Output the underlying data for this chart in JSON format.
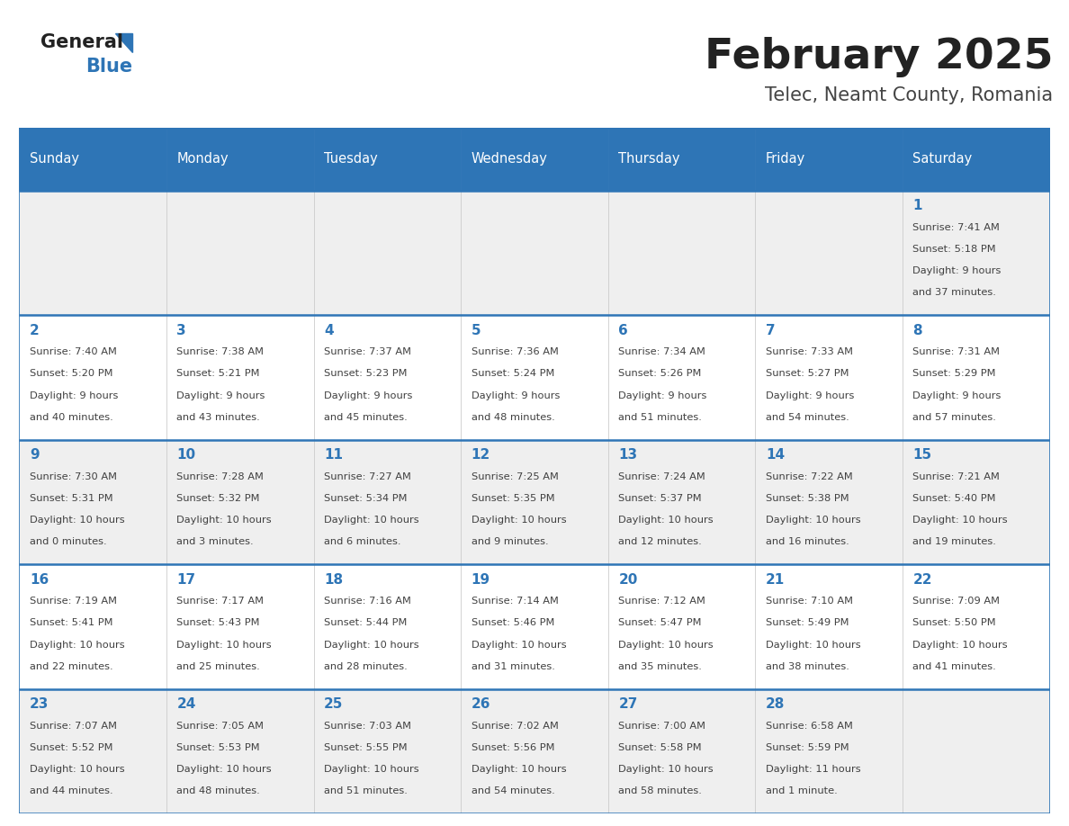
{
  "title": "February 2025",
  "subtitle": "Telec, Neamt County, Romania",
  "header_bg": "#2E75B6",
  "header_text_color": "#FFFFFF",
  "cell_bg_light": "#EFEFEF",
  "cell_bg_white": "#FFFFFF",
  "day_number_color": "#2E75B6",
  "info_text_color": "#404040",
  "border_color": "#2E75B6",
  "grid_line_color": "#CCCCCC",
  "days_of_week": [
    "Sunday",
    "Monday",
    "Tuesday",
    "Wednesday",
    "Thursday",
    "Friday",
    "Saturday"
  ],
  "weeks": [
    [
      {
        "day": "",
        "info": ""
      },
      {
        "day": "",
        "info": ""
      },
      {
        "day": "",
        "info": ""
      },
      {
        "day": "",
        "info": ""
      },
      {
        "day": "",
        "info": ""
      },
      {
        "day": "",
        "info": ""
      },
      {
        "day": "1",
        "info": "Sunrise: 7:41 AM\nSunset: 5:18 PM\nDaylight: 9 hours\nand 37 minutes."
      }
    ],
    [
      {
        "day": "2",
        "info": "Sunrise: 7:40 AM\nSunset: 5:20 PM\nDaylight: 9 hours\nand 40 minutes."
      },
      {
        "day": "3",
        "info": "Sunrise: 7:38 AM\nSunset: 5:21 PM\nDaylight: 9 hours\nand 43 minutes."
      },
      {
        "day": "4",
        "info": "Sunrise: 7:37 AM\nSunset: 5:23 PM\nDaylight: 9 hours\nand 45 minutes."
      },
      {
        "day": "5",
        "info": "Sunrise: 7:36 AM\nSunset: 5:24 PM\nDaylight: 9 hours\nand 48 minutes."
      },
      {
        "day": "6",
        "info": "Sunrise: 7:34 AM\nSunset: 5:26 PM\nDaylight: 9 hours\nand 51 minutes."
      },
      {
        "day": "7",
        "info": "Sunrise: 7:33 AM\nSunset: 5:27 PM\nDaylight: 9 hours\nand 54 minutes."
      },
      {
        "day": "8",
        "info": "Sunrise: 7:31 AM\nSunset: 5:29 PM\nDaylight: 9 hours\nand 57 minutes."
      }
    ],
    [
      {
        "day": "9",
        "info": "Sunrise: 7:30 AM\nSunset: 5:31 PM\nDaylight: 10 hours\nand 0 minutes."
      },
      {
        "day": "10",
        "info": "Sunrise: 7:28 AM\nSunset: 5:32 PM\nDaylight: 10 hours\nand 3 minutes."
      },
      {
        "day": "11",
        "info": "Sunrise: 7:27 AM\nSunset: 5:34 PM\nDaylight: 10 hours\nand 6 minutes."
      },
      {
        "day": "12",
        "info": "Sunrise: 7:25 AM\nSunset: 5:35 PM\nDaylight: 10 hours\nand 9 minutes."
      },
      {
        "day": "13",
        "info": "Sunrise: 7:24 AM\nSunset: 5:37 PM\nDaylight: 10 hours\nand 12 minutes."
      },
      {
        "day": "14",
        "info": "Sunrise: 7:22 AM\nSunset: 5:38 PM\nDaylight: 10 hours\nand 16 minutes."
      },
      {
        "day": "15",
        "info": "Sunrise: 7:21 AM\nSunset: 5:40 PM\nDaylight: 10 hours\nand 19 minutes."
      }
    ],
    [
      {
        "day": "16",
        "info": "Sunrise: 7:19 AM\nSunset: 5:41 PM\nDaylight: 10 hours\nand 22 minutes."
      },
      {
        "day": "17",
        "info": "Sunrise: 7:17 AM\nSunset: 5:43 PM\nDaylight: 10 hours\nand 25 minutes."
      },
      {
        "day": "18",
        "info": "Sunrise: 7:16 AM\nSunset: 5:44 PM\nDaylight: 10 hours\nand 28 minutes."
      },
      {
        "day": "19",
        "info": "Sunrise: 7:14 AM\nSunset: 5:46 PM\nDaylight: 10 hours\nand 31 minutes."
      },
      {
        "day": "20",
        "info": "Sunrise: 7:12 AM\nSunset: 5:47 PM\nDaylight: 10 hours\nand 35 minutes."
      },
      {
        "day": "21",
        "info": "Sunrise: 7:10 AM\nSunset: 5:49 PM\nDaylight: 10 hours\nand 38 minutes."
      },
      {
        "day": "22",
        "info": "Sunrise: 7:09 AM\nSunset: 5:50 PM\nDaylight: 10 hours\nand 41 minutes."
      }
    ],
    [
      {
        "day": "23",
        "info": "Sunrise: 7:07 AM\nSunset: 5:52 PM\nDaylight: 10 hours\nand 44 minutes."
      },
      {
        "day": "24",
        "info": "Sunrise: 7:05 AM\nSunset: 5:53 PM\nDaylight: 10 hours\nand 48 minutes."
      },
      {
        "day": "25",
        "info": "Sunrise: 7:03 AM\nSunset: 5:55 PM\nDaylight: 10 hours\nand 51 minutes."
      },
      {
        "day": "26",
        "info": "Sunrise: 7:02 AM\nSunset: 5:56 PM\nDaylight: 10 hours\nand 54 minutes."
      },
      {
        "day": "27",
        "info": "Sunrise: 7:00 AM\nSunset: 5:58 PM\nDaylight: 10 hours\nand 58 minutes."
      },
      {
        "day": "28",
        "info": "Sunrise: 6:58 AM\nSunset: 5:59 PM\nDaylight: 11 hours\nand 1 minute."
      },
      {
        "day": "",
        "info": ""
      }
    ]
  ],
  "logo_general_color": "#222222",
  "logo_blue_color": "#2E75B6",
  "logo_triangle_color": "#2E75B6"
}
